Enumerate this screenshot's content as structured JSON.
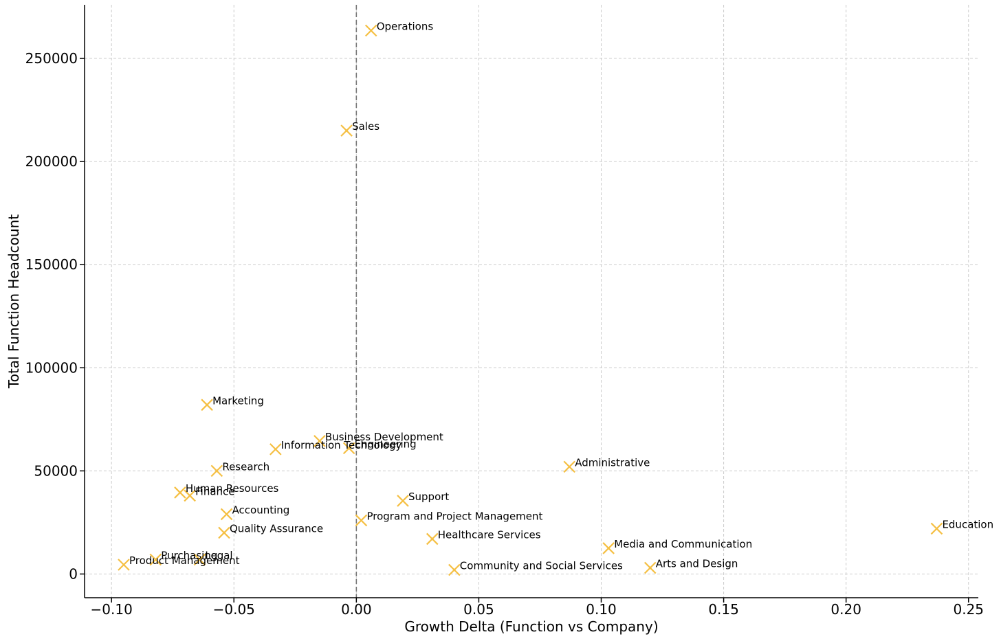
{
  "chart_data": {
    "type": "scatter",
    "title": "",
    "xlabel": "Growth Delta (Function vs Company)",
    "ylabel": "Total Function Headcount",
    "xlim": [
      -0.111,
      0.254
    ],
    "ylim": [
      -11500,
      276000
    ],
    "x_ticks": [
      -0.1,
      -0.05,
      0.0,
      0.05,
      0.1,
      0.15,
      0.2,
      0.25
    ],
    "x_tick_labels": [
      "−0.10",
      "−0.05",
      "0.00",
      "0.05",
      "0.10",
      "0.15",
      "0.20",
      "0.25"
    ],
    "y_ticks": [
      0,
      50000,
      100000,
      150000,
      200000,
      250000
    ],
    "y_tick_labels": [
      "0",
      "50000",
      "100000",
      "150000",
      "200000",
      "250000"
    ],
    "grid": true,
    "reference_line_x": 0,
    "marker": "x",
    "colors": {
      "marker": "#f5bf42",
      "grid": "#cccccc",
      "reference_line": "#777777",
      "axis": "#000000"
    },
    "points": [
      {
        "label": "Operations",
        "x": 0.006,
        "y": 263500
      },
      {
        "label": "Sales",
        "x": -0.004,
        "y": 215000
      },
      {
        "label": "Marketing",
        "x": -0.061,
        "y": 82000
      },
      {
        "label": "Business Development",
        "x": -0.015,
        "y": 64500
      },
      {
        "label": "Information Technology",
        "x": -0.033,
        "y": 60500
      },
      {
        "label": "Engineering",
        "x": -0.003,
        "y": 61000
      },
      {
        "label": "Administrative",
        "x": 0.087,
        "y": 52000
      },
      {
        "label": "Research",
        "x": -0.057,
        "y": 50000
      },
      {
        "label": "Human Resources",
        "x": -0.072,
        "y": 39500
      },
      {
        "label": "Finance",
        "x": -0.068,
        "y": 38000
      },
      {
        "label": "Support",
        "x": 0.019,
        "y": 35500
      },
      {
        "label": "Accounting",
        "x": -0.053,
        "y": 29000
      },
      {
        "label": "Program and Project Management",
        "x": 0.002,
        "y": 26000
      },
      {
        "label": "Education",
        "x": 0.237,
        "y": 22000
      },
      {
        "label": "Quality Assurance",
        "x": -0.054,
        "y": 20000
      },
      {
        "label": "Healthcare Services",
        "x": 0.031,
        "y": 17000
      },
      {
        "label": "Media and Communication",
        "x": 0.103,
        "y": 12500
      },
      {
        "label": "Purchasing",
        "x": -0.082,
        "y": 7000
      },
      {
        "label": "Legal",
        "x": -0.064,
        "y": 7000
      },
      {
        "label": "Product Management",
        "x": -0.095,
        "y": 4500
      },
      {
        "label": "Arts and Design",
        "x": 0.12,
        "y": 3000
      },
      {
        "label": "Community and Social Services",
        "x": 0.04,
        "y": 2000
      }
    ]
  }
}
